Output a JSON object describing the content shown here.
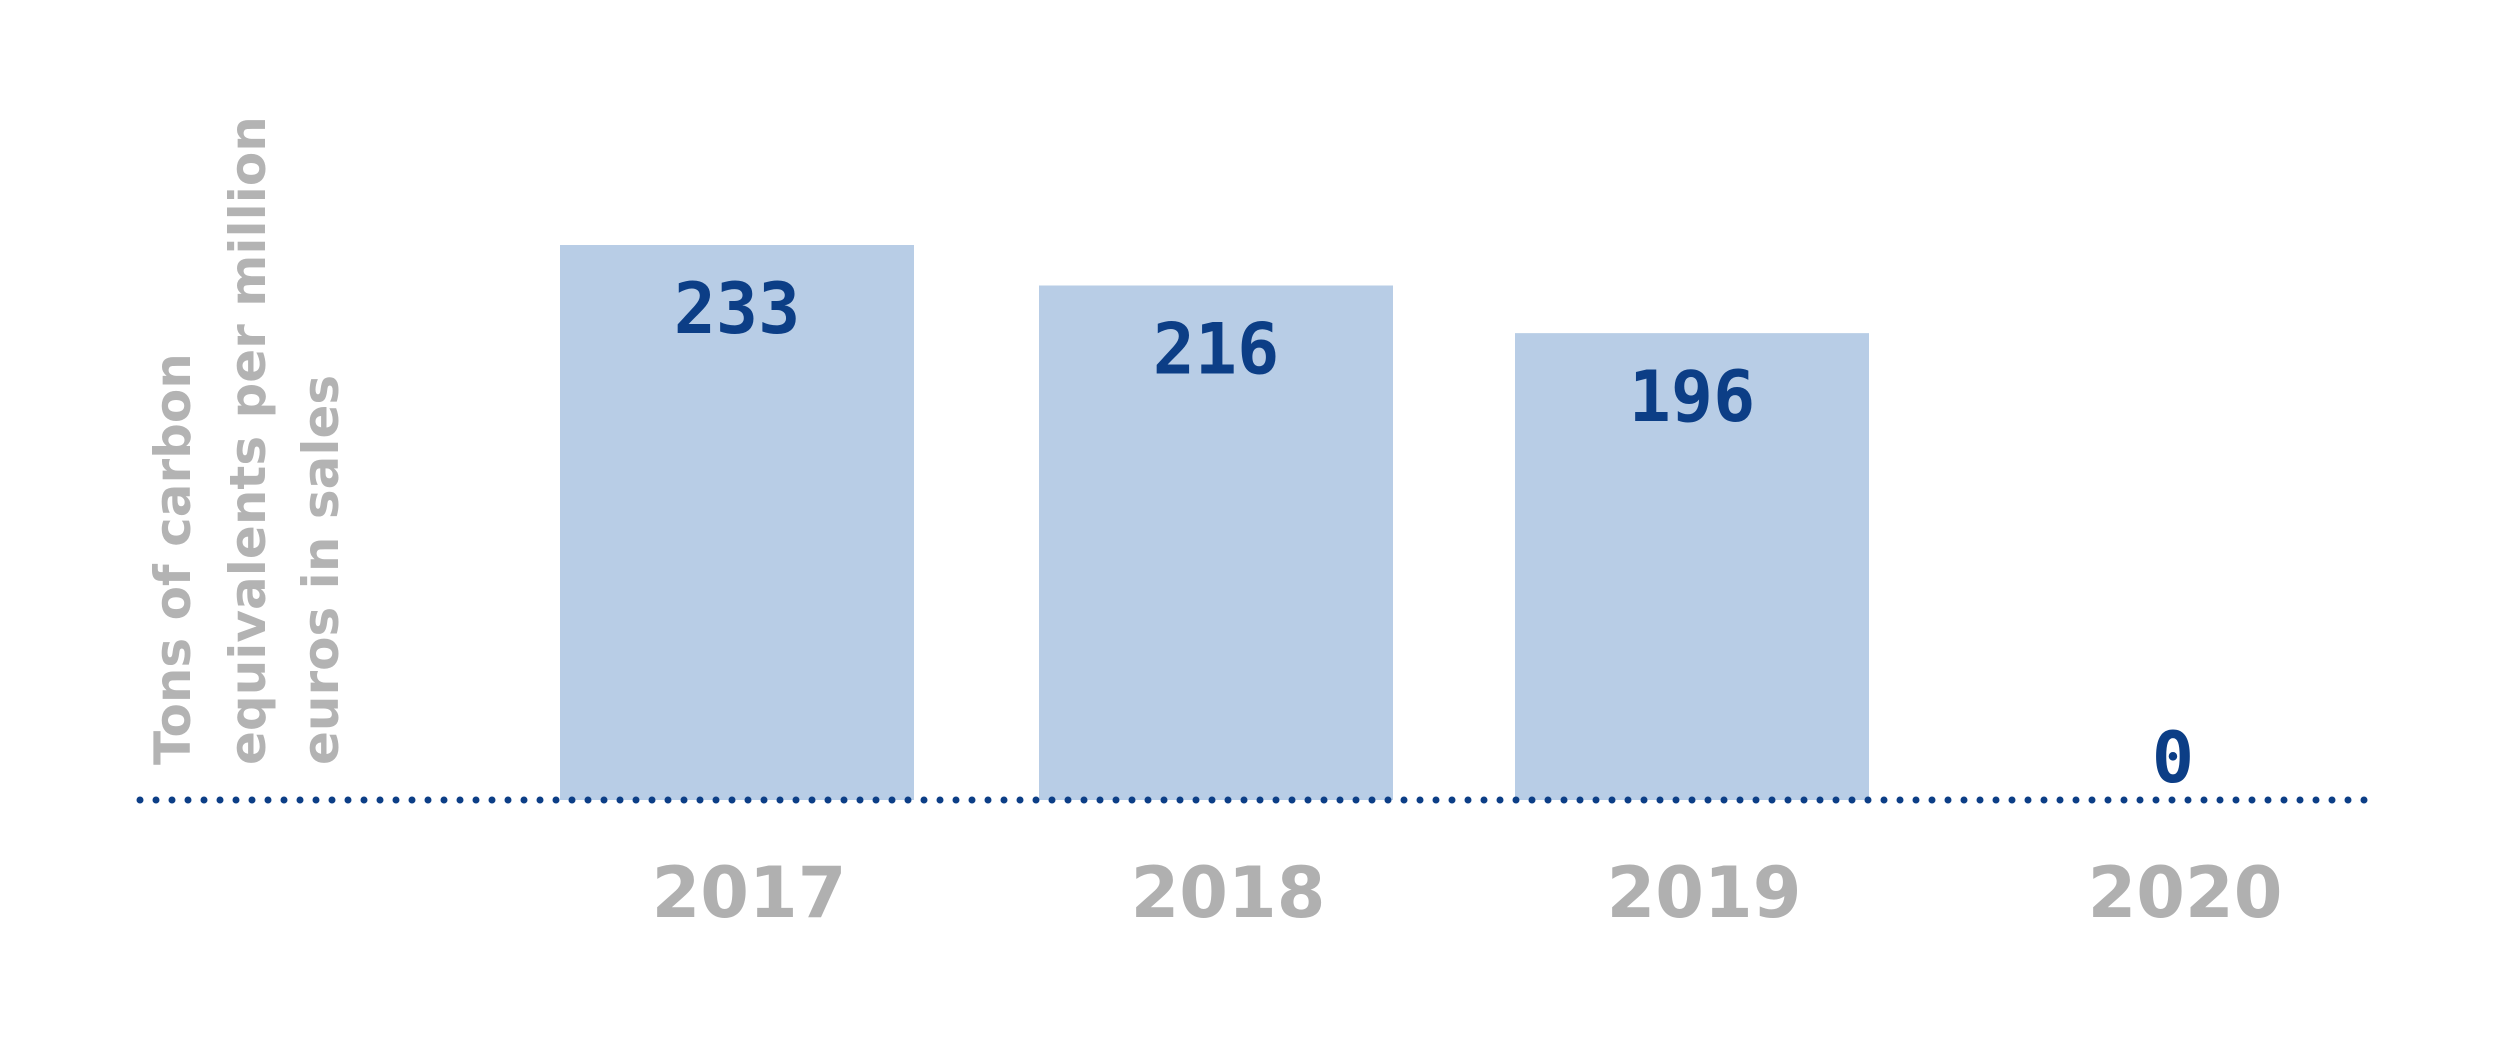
{
  "chart_data": {
    "type": "bar",
    "categories": [
      "2017",
      "2018",
      "2019",
      "2020"
    ],
    "values": [
      233,
      216,
      196,
      0
    ],
    "value_labels": [
      "233",
      "216",
      "196",
      "0"
    ],
    "title": "",
    "xlabel": "",
    "ylabel_lines": [
      "Tons of carbon",
      "equivalents per million",
      "euros in sales"
    ],
    "ylim": [
      0,
      260
    ],
    "grid": false,
    "legend": "none",
    "colors": {
      "bar": "#b8cde6",
      "value_label": "#0c3e86",
      "baseline": "#0c3e86",
      "axis_text": "#b0b0b0"
    }
  }
}
